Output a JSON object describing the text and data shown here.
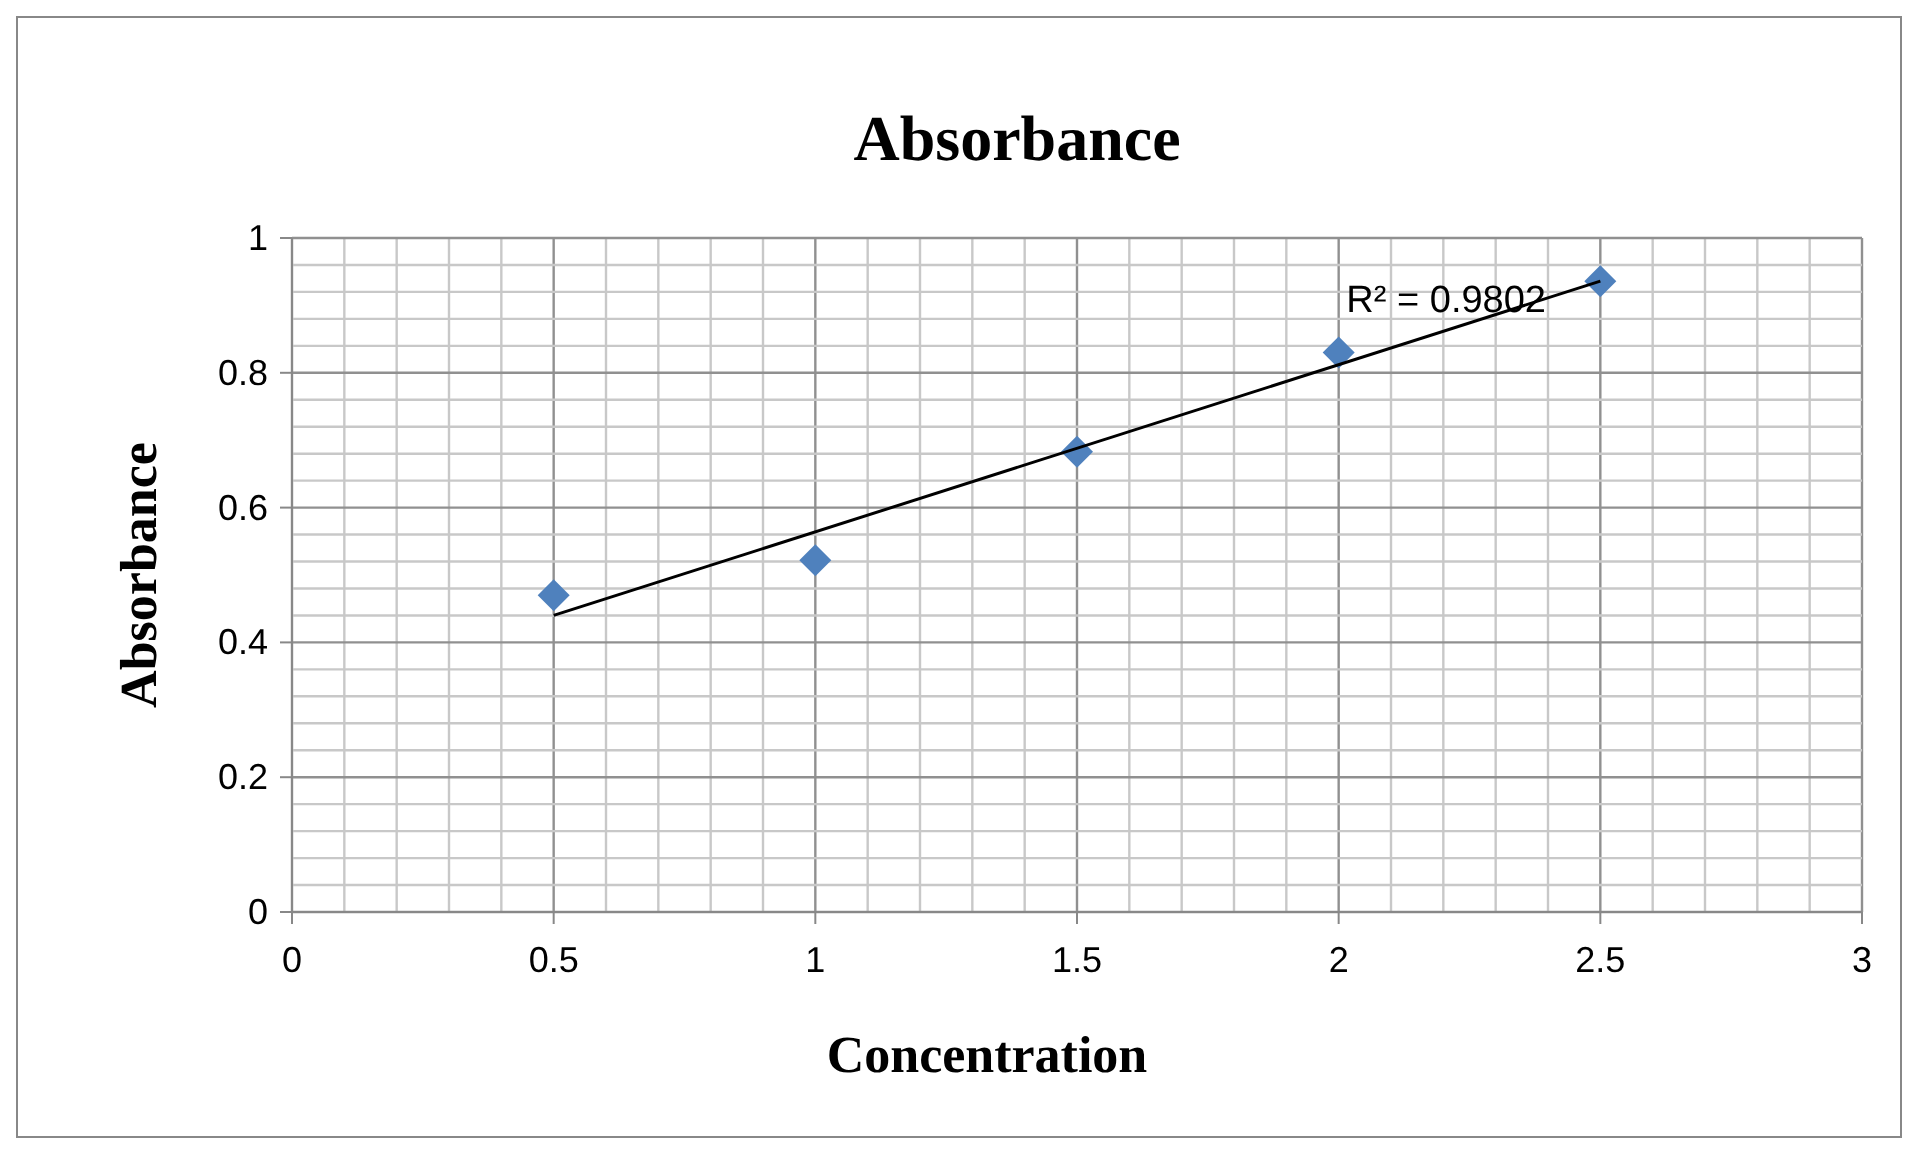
{
  "chart_data": {
    "type": "scatter",
    "title": "Absorbance",
    "xlabel": "Concentration",
    "ylabel": "Absorbance",
    "x": [
      0.5,
      1,
      1.5,
      2,
      2.5
    ],
    "series": [
      {
        "color": "#4f81bd",
        "marker": "diamond",
        "values": [
          0.47,
          0.522,
          0.683,
          0.83,
          0.936
        ]
      },
      {
        "type": "line",
        "color": "#000000",
        "x": [
          0.5,
          2.5
        ],
        "values": [
          0.44,
          0.936
        ],
        "line_style": "solid",
        "marker": "none"
      }
    ],
    "annotations": [
      "R² = 0.9802"
    ],
    "xlim": [
      0,
      3
    ],
    "ylim": [
      0,
      1
    ],
    "xticks": [
      0,
      {
        "value": 0.1,
        "label": null
      },
      {
        "value": 0.2,
        "label": null
      },
      {
        "value": 0.3,
        "label": null
      },
      {
        "value": 0.4,
        "label": null
      },
      0.5,
      {
        "value": 0.6,
        "label": null
      },
      {
        "value": 0.7,
        "label": null
      },
      {
        "value": 0.8,
        "label": null
      },
      {
        "value": 0.9,
        "label": null
      },
      1,
      {
        "value": 1.1,
        "label": null
      },
      {
        "value": 1.2,
        "label": null
      },
      {
        "value": 1.3,
        "label": null
      },
      {
        "value": 1.4,
        "label": null
      },
      1.5,
      {
        "value": 1.6,
        "label": null
      },
      {
        "value": 1.7,
        "label": null
      },
      {
        "value": 1.8,
        "label": null
      },
      {
        "value": 1.9,
        "label": null
      },
      2,
      {
        "value": 2.1,
        "label": null
      },
      {
        "value": 2.2,
        "label": null
      },
      {
        "value": 2.3,
        "label": null
      },
      {
        "value": 2.4,
        "label": null
      },
      2.5,
      {
        "value": 2.6,
        "label": null
      },
      {
        "value": 2.7,
        "label": null
      },
      {
        "value": 2.8,
        "label": null
      },
      {
        "value": 2.9,
        "label": null
      },
      3
    ],
    "yticks": [
      0,
      {
        "value": 0.04,
        "label": null
      },
      {
        "value": 0.08,
        "label": null
      },
      {
        "value": 0.12,
        "label": null
      },
      {
        "value": 0.16,
        "label": null
      },
      0.2,
      {
        "value": 0.24,
        "label": null
      },
      {
        "value": 0.28,
        "label": null
      },
      {
        "value": 0.32,
        "label": null
      },
      {
        "value": 0.36,
        "label": null
      },
      0.4,
      {
        "value": 0.44,
        "label": null
      },
      {
        "value": 0.48,
        "label": null
      },
      {
        "value": 0.52,
        "label": null
      },
      {
        "value": 0.56,
        "label": null
      },
      0.6,
      {
        "value": 0.64,
        "label": null
      },
      {
        "value": 0.68,
        "label": null
      },
      {
        "value": 0.72,
        "label": null
      },
      {
        "value": 0.76,
        "label": null
      },
      0.8,
      {
        "value": 0.84,
        "label": null
      },
      {
        "value": 0.88,
        "label": null
      },
      {
        "value": 0.92,
        "label": null
      },
      {
        "value": 0.96,
        "label": null
      },
      1
    ],
    "grid": true
  }
}
